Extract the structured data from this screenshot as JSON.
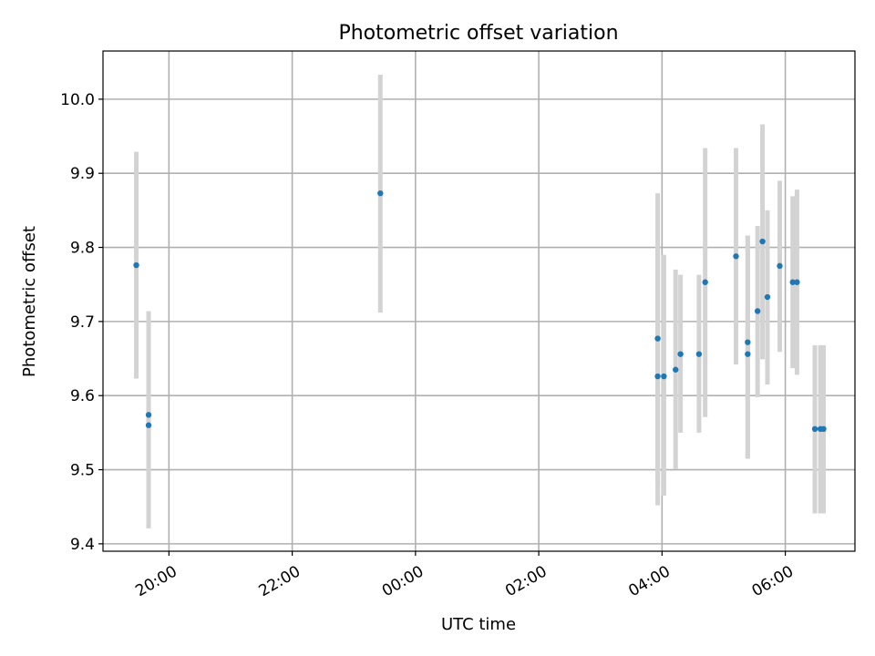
{
  "chart_data": {
    "type": "scatter",
    "title": "Photometric offset variation",
    "xlabel": "UTC time",
    "ylabel": "Photometric offset",
    "x_unit": "hours (UTC clock; values past 24 are the next day)",
    "xlim": [
      18.93,
      31.13
    ],
    "ylim": [
      9.39,
      10.065
    ],
    "xticks": [
      {
        "value": 20,
        "label": "20:00"
      },
      {
        "value": 22,
        "label": "22:00"
      },
      {
        "value": 24,
        "label": "00:00"
      },
      {
        "value": 26,
        "label": "02:00"
      },
      {
        "value": 28,
        "label": "04:00"
      },
      {
        "value": 30,
        "label": "06:00"
      }
    ],
    "yticks": [
      {
        "value": 9.4,
        "label": "9.4"
      },
      {
        "value": 9.5,
        "label": "9.5"
      },
      {
        "value": 9.6,
        "label": "9.6"
      },
      {
        "value": 9.7,
        "label": "9.7"
      },
      {
        "value": 9.8,
        "label": "9.8"
      },
      {
        "value": 9.9,
        "label": "9.9"
      },
      {
        "value": 10.0,
        "label": "10.0"
      }
    ],
    "grid": true,
    "colors": {
      "marker": "#1f77b4",
      "errorbar": "#d3d3d3"
    },
    "points": [
      {
        "x": 19.47,
        "y": 9.776,
        "ylow": 9.623,
        "yhigh": 9.929
      },
      {
        "x": 19.67,
        "y": 9.574,
        "ylow": 9.421,
        "yhigh": 9.714
      },
      {
        "x": 19.67,
        "y": 9.56,
        "ylow": 9.421,
        "yhigh": 9.714
      },
      {
        "x": 23.43,
        "y": 9.873,
        "ylow": 9.712,
        "yhigh": 10.033
      },
      {
        "x": 27.93,
        "y": 9.677,
        "ylow": 9.48,
        "yhigh": 9.873
      },
      {
        "x": 27.93,
        "y": 9.626,
        "ylow": 9.452,
        "yhigh": 9.8
      },
      {
        "x": 28.03,
        "y": 9.626,
        "ylow": 9.465,
        "yhigh": 9.79
      },
      {
        "x": 28.22,
        "y": 9.635,
        "ylow": 9.501,
        "yhigh": 9.77
      },
      {
        "x": 28.3,
        "y": 9.656,
        "ylow": 9.55,
        "yhigh": 9.763
      },
      {
        "x": 28.6,
        "y": 9.656,
        "ylow": 9.55,
        "yhigh": 9.763
      },
      {
        "x": 28.7,
        "y": 9.753,
        "ylow": 9.571,
        "yhigh": 9.934
      },
      {
        "x": 29.2,
        "y": 9.788,
        "ylow": 9.642,
        "yhigh": 9.934
      },
      {
        "x": 29.39,
        "y": 9.672,
        "ylow": 9.515,
        "yhigh": 9.816
      },
      {
        "x": 29.39,
        "y": 9.656,
        "ylow": 9.515,
        "yhigh": 9.816
      },
      {
        "x": 29.55,
        "y": 9.714,
        "ylow": 9.598,
        "yhigh": 9.829
      },
      {
        "x": 29.63,
        "y": 9.808,
        "ylow": 9.649,
        "yhigh": 9.966
      },
      {
        "x": 29.71,
        "y": 9.733,
        "ylow": 9.615,
        "yhigh": 9.85
      },
      {
        "x": 29.91,
        "y": 9.775,
        "ylow": 9.659,
        "yhigh": 9.89
      },
      {
        "x": 30.12,
        "y": 9.753,
        "ylow": 9.637,
        "yhigh": 9.869
      },
      {
        "x": 30.19,
        "y": 9.753,
        "ylow": 9.628,
        "yhigh": 9.878
      },
      {
        "x": 30.48,
        "y": 9.555,
        "ylow": 9.441,
        "yhigh": 9.668
      },
      {
        "x": 30.57,
        "y": 9.555,
        "ylow": 9.441,
        "yhigh": 9.668
      },
      {
        "x": 30.62,
        "y": 9.555,
        "ylow": 9.441,
        "yhigh": 9.668
      }
    ]
  }
}
